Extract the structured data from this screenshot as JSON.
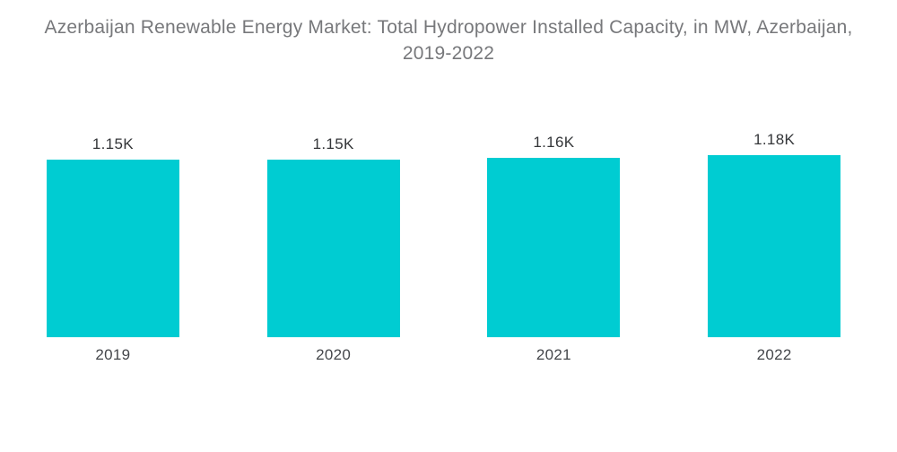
{
  "header": {
    "title": "Azerbaijan Renewable Energy Market: Total Hydropower Installed Capacity, in MW, Azerbaijan, 2019-2022"
  },
  "chart_data": {
    "type": "bar",
    "title": "Azerbaijan Renewable Energy Market: Total Hydropower Installed Capacity, in MW, Azerbaijan, 2019-2022",
    "categories": [
      "2019",
      "2020",
      "2021",
      "2022"
    ],
    "values": [
      1150,
      1150,
      1160,
      1180
    ],
    "value_labels": [
      "1.15K",
      "1.15K",
      "1.16K",
      "1.18K"
    ],
    "xlabel": "",
    "ylabel": "",
    "ylim": [
      0,
      1180
    ],
    "grid": false,
    "legend": "none",
    "bar_color": "#00CCD2",
    "value_label_color": "#343639",
    "axis_label_color": "#45474B",
    "title_color": "#77787B",
    "background_color": "#FFFFFF"
  }
}
